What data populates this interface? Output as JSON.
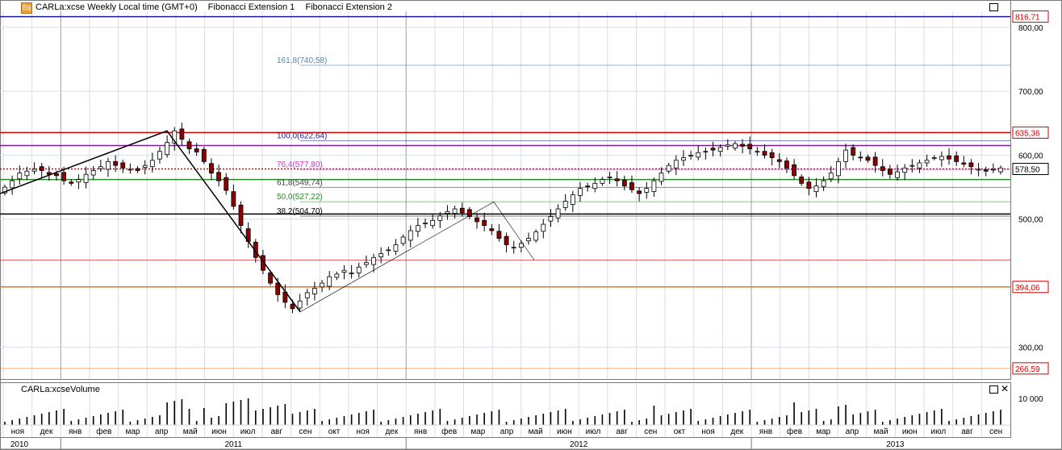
{
  "header": {
    "title": "CARLa:xcse Weekly Local time (GMT+0)",
    "study1": "Fibonacci Extension 1",
    "study2": "Fibonacci Extension 2",
    "logo_text": "Eq"
  },
  "volume_panel": {
    "title": "CARLa:xcseVolume",
    "tick": "10 000"
  },
  "colors": {
    "red": "#d40000",
    "purple": "#7a1f8a",
    "navy": "#1a1a8c",
    "green": "#2a8a2a",
    "orange": "#e07a20",
    "pink_line": "#cc3399",
    "candle_up": "#ffffff",
    "candle_down": "#8b0000",
    "grid": "#d8dde6"
  },
  "chart_data": {
    "type": "candlestick",
    "y_ticks": [
      "800,00",
      "700,00",
      "600,00",
      "500,00",
      "300,00"
    ],
    "y_tick_values": [
      800,
      700,
      600,
      500,
      300
    ],
    "ylim": [
      250,
      825
    ],
    "price_labels": [
      {
        "text": "816,71",
        "value": 816.71,
        "color": "#d40000"
      },
      {
        "text": "635,36",
        "value": 635.36,
        "color": "#d40000"
      },
      {
        "text": "578,50",
        "value": 578.5,
        "color": "#000000"
      },
      {
        "text": "394,06",
        "value": 394.06,
        "color": "#d40000"
      },
      {
        "text": "266,59",
        "value": 266.59,
        "color": "#d40000"
      }
    ],
    "horizontal_levels": [
      {
        "value": 816.71,
        "color": "#1a1a8c"
      },
      {
        "value": 635.36,
        "color": "#d40000"
      },
      {
        "value": 615,
        "color": "#7a1f8a"
      },
      {
        "value": 578.5,
        "color": "#d40000",
        "dotted": true
      },
      {
        "value": 562,
        "color": "#2a8a2a"
      },
      {
        "value": 508,
        "color": "#000000"
      },
      {
        "value": 436,
        "color": "#d40000",
        "faint": true
      },
      {
        "value": 394.06,
        "color": "#e07a20"
      },
      {
        "value": 266.59,
        "color": "#e07a20",
        "faint": true
      }
    ],
    "fib_levels": [
      {
        "label": "161,8(740,58)",
        "value": 740.58,
        "color": "#4a8ab0"
      },
      {
        "label": "100,0(622,64)",
        "value": 622.64,
        "color": "#2020a0"
      },
      {
        "label": "76,4(577,80)",
        "value": 577.8,
        "color": "#cc33cc"
      },
      {
        "label": "61,8(549,74)",
        "value": 549.74,
        "color": "#404040"
      },
      {
        "label": "50,0(527,22)",
        "value": 527.22,
        "color": "#2a8a2a"
      },
      {
        "label": "38,2(504,70)",
        "value": 504.7,
        "color": "#000000"
      }
    ],
    "month_labels": [
      "ноя",
      "дек",
      "янв",
      "фев",
      "мар",
      "апр",
      "май",
      "июн",
      "июл",
      "авг",
      "сен",
      "окт",
      "ноя",
      "дек",
      "янв",
      "фев",
      "мар",
      "апр",
      "май",
      "июн",
      "июл",
      "авг",
      "сен",
      "окт",
      "ноя",
      "дек",
      "янв",
      "фев",
      "мар",
      "апр",
      "май",
      "июн",
      "июл",
      "авг",
      "сен"
    ],
    "year_labels": [
      "2010",
      "2011",
      "2012",
      "2013"
    ],
    "closes": [
      550,
      560,
      572,
      575,
      578,
      576,
      570,
      568,
      560,
      556,
      562,
      570,
      576,
      582,
      590,
      584,
      580,
      578,
      576,
      584,
      592,
      606,
      620,
      638,
      625,
      610,
      605,
      590,
      572,
      560,
      545,
      520,
      490,
      465,
      440,
      420,
      400,
      382,
      370,
      360,
      372,
      385,
      392,
      400,
      410,
      414,
      420,
      416,
      425,
      432,
      440,
      446,
      452,
      460,
      472,
      482,
      490,
      494,
      498,
      505,
      512,
      516,
      510,
      504,
      496,
      490,
      482,
      470,
      460,
      456,
      462,
      470,
      480,
      492,
      504,
      516,
      528,
      538,
      548,
      552,
      556,
      562,
      566,
      560,
      552,
      546,
      540,
      548,
      560,
      572,
      584,
      592,
      596,
      600,
      604,
      606,
      608,
      612,
      616,
      618,
      614,
      610,
      606,
      600,
      596,
      590,
      580,
      568,
      556,
      548,
      552,
      560,
      572,
      590,
      608,
      600,
      596,
      592,
      584,
      576,
      570,
      574,
      580,
      584,
      588,
      592,
      596,
      598,
      594,
      590,
      586,
      582,
      578,
      575,
      578,
      580
    ]
  }
}
